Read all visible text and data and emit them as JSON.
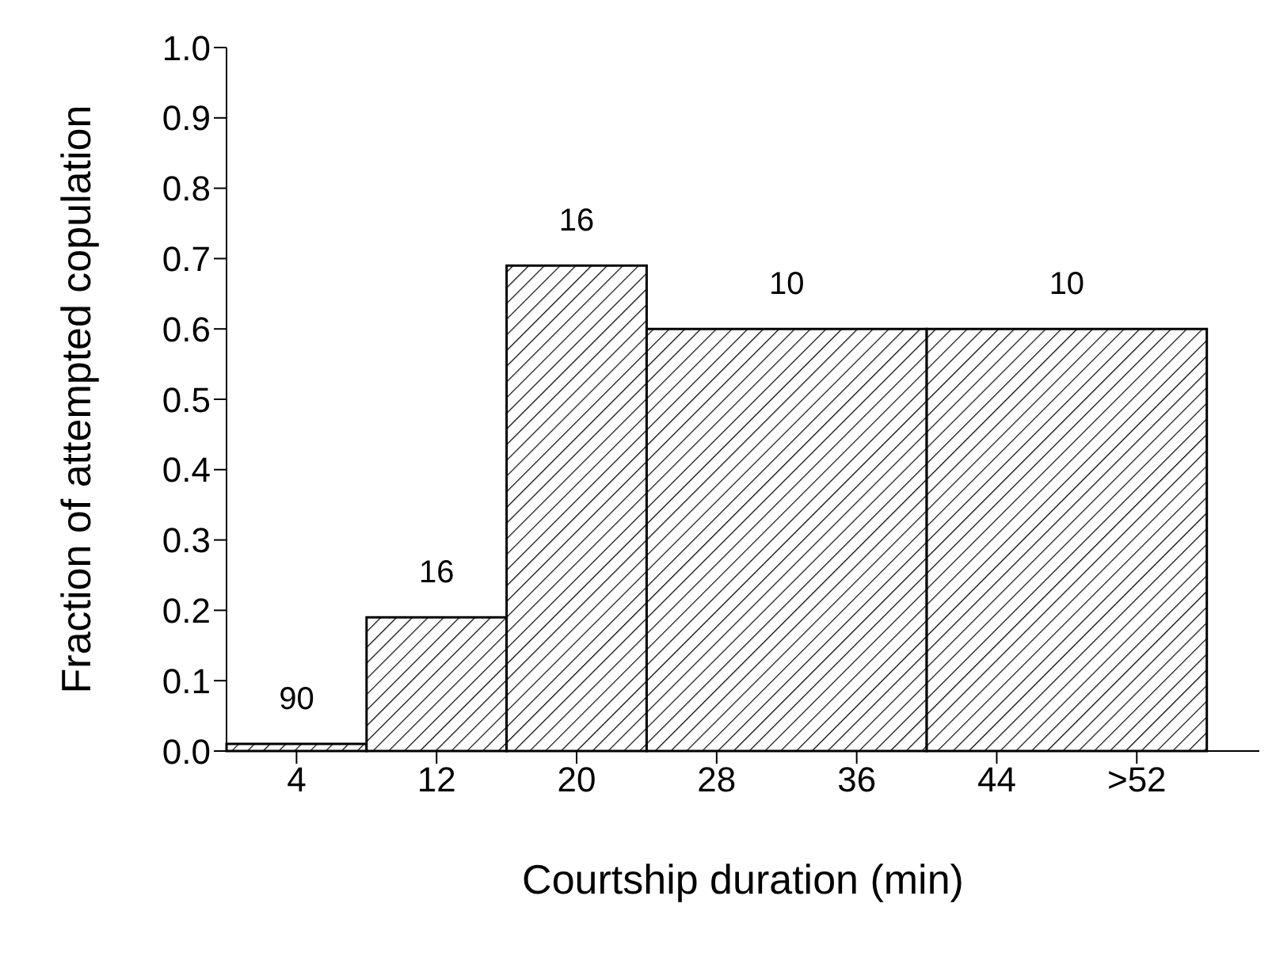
{
  "chart_data": {
    "type": "histogram",
    "xlabel": "Courtship duration (min)",
    "ylabel": "Fraction of attempted copulation",
    "bins": [
      0,
      8,
      16,
      24,
      40,
      56
    ],
    "values": [
      0.01,
      0.19,
      0.69,
      0.6,
      0.6
    ],
    "annotations": [
      {
        "text": "90",
        "x": 4,
        "y": 0.01
      },
      {
        "text": "16",
        "x": 12,
        "y": 0.19
      },
      {
        "text": "16",
        "x": 20,
        "y": 0.69
      },
      {
        "text": "10",
        "x": 32,
        "y": 0.6
      },
      {
        "text": "10",
        "x": 48,
        "y": 0.6
      }
    ],
    "color": "#000000",
    "xlim": [
      0,
      59
    ],
    "xticks": [
      4,
      12,
      20,
      28,
      36,
      44,
      {
        "value": 52,
        "label": ">52"
      }
    ],
    "ylim": [
      0,
      1
    ],
    "yticks": [
      {
        "value": 0,
        "label": "0.0"
      },
      0.1,
      0.2,
      0.3,
      0.4,
      0.5,
      0.6,
      0.7,
      0.8,
      0.9,
      {
        "value": 1,
        "label": "1.0"
      }
    ]
  }
}
